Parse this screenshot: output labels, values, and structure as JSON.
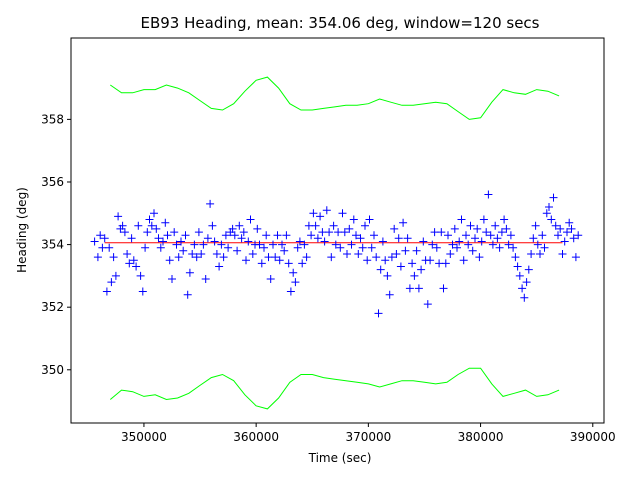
{
  "chart_data": {
    "type": "scatter",
    "title": "EB93 Heading, mean: 354.06 deg, window=120 secs",
    "xlabel": "Time (sec)",
    "ylabel": "Heading (deg)",
    "xlim": [
      343500,
      391000
    ],
    "ylim": [
      348.3,
      360.6
    ],
    "xticks": [
      350000,
      360000,
      370000,
      380000,
      390000
    ],
    "yticks": [
      350,
      352,
      354,
      356,
      358
    ],
    "colors": {
      "points": "#0000ff",
      "mean_line": "#ff0000",
      "band": "#00ff00",
      "axes": "#000000"
    },
    "mean": 354.06,
    "mean_line_x": [
      346500,
      387300
    ],
    "marker": "plus",
    "band_x": [
      347000,
      348000,
      349000,
      350000,
      351000,
      352000,
      353000,
      354000,
      355000,
      356000,
      357000,
      358000,
      359000,
      360000,
      361000,
      362000,
      363000,
      364000,
      365000,
      366000,
      367000,
      368000,
      369000,
      370000,
      371000,
      372000,
      373000,
      374000,
      375000,
      376000,
      377000,
      378000,
      379000,
      380000,
      381000,
      382000,
      383000,
      384000,
      385000,
      386000,
      387000
    ],
    "upper_band": [
      359.1,
      358.85,
      358.85,
      358.95,
      358.95,
      359.1,
      359.0,
      358.85,
      358.6,
      358.35,
      358.3,
      358.5,
      358.9,
      359.25,
      359.35,
      359.0,
      358.5,
      358.3,
      358.3,
      358.35,
      358.4,
      358.45,
      358.45,
      358.5,
      358.65,
      358.55,
      358.45,
      358.45,
      358.5,
      358.55,
      358.5,
      358.25,
      358.0,
      358.05,
      358.55,
      358.95,
      358.85,
      358.8,
      358.95,
      358.9,
      358.75
    ],
    "lower_band": [
      349.05,
      349.35,
      349.3,
      349.15,
      349.2,
      349.05,
      349.1,
      349.25,
      349.5,
      349.75,
      349.85,
      349.65,
      349.2,
      348.85,
      348.75,
      349.1,
      349.6,
      349.85,
      349.85,
      349.75,
      349.7,
      349.65,
      349.6,
      349.55,
      349.45,
      349.55,
      349.65,
      349.65,
      349.6,
      349.55,
      349.6,
      349.85,
      350.05,
      350.05,
      349.55,
      349.15,
      349.25,
      349.35,
      349.15,
      349.2,
      349.35
    ],
    "points": [
      [
        345600,
        354.1
      ],
      [
        345900,
        353.6
      ],
      [
        346100,
        354.3
      ],
      [
        346300,
        353.9
      ],
      [
        346500,
        354.2
      ],
      [
        346700,
        352.5
      ],
      [
        346900,
        353.9
      ],
      [
        347100,
        352.8
      ],
      [
        347300,
        353.6
      ],
      [
        347500,
        353.0
      ],
      [
        347700,
        354.9
      ],
      [
        347900,
        354.5
      ],
      [
        348100,
        354.6
      ],
      [
        348300,
        354.4
      ],
      [
        348500,
        353.7
      ],
      [
        348700,
        353.4
      ],
      [
        348900,
        354.2
      ],
      [
        349100,
        353.5
      ],
      [
        349300,
        353.3
      ],
      [
        349500,
        354.6
      ],
      [
        349700,
        353.0
      ],
      [
        349900,
        352.5
      ],
      [
        350100,
        353.9
      ],
      [
        350300,
        354.4
      ],
      [
        350500,
        354.8
      ],
      [
        350700,
        354.6
      ],
      [
        350900,
        355.0
      ],
      [
        351100,
        354.5
      ],
      [
        351300,
        354.2
      ],
      [
        351500,
        353.9
      ],
      [
        351700,
        354.1
      ],
      [
        351900,
        354.7
      ],
      [
        352100,
        354.3
      ],
      [
        352300,
        353.5
      ],
      [
        352500,
        352.9
      ],
      [
        352700,
        354.4
      ],
      [
        352900,
        354.0
      ],
      [
        353100,
        353.6
      ],
      [
        353300,
        354.1
      ],
      [
        353500,
        353.8
      ],
      [
        353700,
        354.3
      ],
      [
        353900,
        352.4
      ],
      [
        354100,
        353.1
      ],
      [
        354300,
        353.7
      ],
      [
        354500,
        354.0
      ],
      [
        354700,
        353.6
      ],
      [
        354900,
        354.4
      ],
      [
        355100,
        353.7
      ],
      [
        355300,
        354.0
      ],
      [
        355500,
        352.9
      ],
      [
        355700,
        354.2
      ],
      [
        355900,
        355.3
      ],
      [
        356100,
        354.6
      ],
      [
        356300,
        354.1
      ],
      [
        356500,
        353.7
      ],
      [
        356700,
        353.3
      ],
      [
        356900,
        354.0
      ],
      [
        357100,
        353.6
      ],
      [
        357300,
        354.3
      ],
      [
        357500,
        353.9
      ],
      [
        357700,
        354.4
      ],
      [
        357900,
        354.5
      ],
      [
        358100,
        354.3
      ],
      [
        358300,
        353.8
      ],
      [
        358500,
        354.6
      ],
      [
        358700,
        354.2
      ],
      [
        358900,
        354.4
      ],
      [
        359100,
        353.5
      ],
      [
        359300,
        354.1
      ],
      [
        359500,
        354.8
      ],
      [
        359700,
        353.7
      ],
      [
        359900,
        354.0
      ],
      [
        360100,
        354.5
      ],
      [
        360300,
        354.0
      ],
      [
        360500,
        353.4
      ],
      [
        360700,
        353.9
      ],
      [
        360900,
        354.3
      ],
      [
        361100,
        353.6
      ],
      [
        361300,
        352.9
      ],
      [
        361500,
        354.0
      ],
      [
        361700,
        353.6
      ],
      [
        361900,
        354.3
      ],
      [
        362100,
        353.5
      ],
      [
        362300,
        354.0
      ],
      [
        362500,
        353.8
      ],
      [
        362700,
        354.3
      ],
      [
        362900,
        353.4
      ],
      [
        363100,
        352.5
      ],
      [
        363300,
        353.1
      ],
      [
        363500,
        352.8
      ],
      [
        363700,
        353.9
      ],
      [
        363900,
        354.1
      ],
      [
        364100,
        353.4
      ],
      [
        364300,
        354.0
      ],
      [
        364500,
        353.6
      ],
      [
        364700,
        354.6
      ],
      [
        364900,
        354.3
      ],
      [
        365100,
        355.0
      ],
      [
        365300,
        354.6
      ],
      [
        365500,
        354.2
      ],
      [
        365700,
        354.9
      ],
      [
        365900,
        354.4
      ],
      [
        366100,
        354.1
      ],
      [
        366300,
        355.1
      ],
      [
        366500,
        354.4
      ],
      [
        366700,
        353.6
      ],
      [
        366900,
        354.6
      ],
      [
        367100,
        354.0
      ],
      [
        367300,
        354.4
      ],
      [
        367500,
        353.9
      ],
      [
        367700,
        355.0
      ],
      [
        367900,
        354.4
      ],
      [
        368100,
        353.7
      ],
      [
        368300,
        354.5
      ],
      [
        368500,
        354.0
      ],
      [
        368700,
        354.8
      ],
      [
        368900,
        354.3
      ],
      [
        369100,
        353.7
      ],
      [
        369300,
        354.2
      ],
      [
        369500,
        353.9
      ],
      [
        369700,
        354.6
      ],
      [
        369900,
        353.5
      ],
      [
        370100,
        354.8
      ],
      [
        370300,
        353.9
      ],
      [
        370500,
        354.3
      ],
      [
        370700,
        353.6
      ],
      [
        370900,
        351.8
      ],
      [
        371100,
        353.2
      ],
      [
        371300,
        354.1
      ],
      [
        371500,
        353.5
      ],
      [
        371700,
        353.0
      ],
      [
        371900,
        352.4
      ],
      [
        372100,
        353.6
      ],
      [
        372300,
        354.5
      ],
      [
        372500,
        353.7
      ],
      [
        372700,
        354.2
      ],
      [
        372900,
        353.3
      ],
      [
        373100,
        354.7
      ],
      [
        373300,
        353.8
      ],
      [
        373500,
        354.2
      ],
      [
        373700,
        352.6
      ],
      [
        373900,
        353.4
      ],
      [
        374100,
        353.0
      ],
      [
        374300,
        353.8
      ],
      [
        374500,
        352.6
      ],
      [
        374700,
        353.2
      ],
      [
        374900,
        354.1
      ],
      [
        375100,
        353.5
      ],
      [
        375300,
        352.1
      ],
      [
        375500,
        353.5
      ],
      [
        375700,
        354.0
      ],
      [
        375900,
        354.4
      ],
      [
        376100,
        353.9
      ],
      [
        376300,
        353.4
      ],
      [
        376500,
        354.4
      ],
      [
        376700,
        352.6
      ],
      [
        376900,
        353.4
      ],
      [
        377100,
        354.3
      ],
      [
        377300,
        353.7
      ],
      [
        377500,
        354.0
      ],
      [
        377700,
        354.5
      ],
      [
        377900,
        353.9
      ],
      [
        378100,
        354.1
      ],
      [
        378300,
        354.8
      ],
      [
        378500,
        353.5
      ],
      [
        378700,
        354.3
      ],
      [
        378900,
        354.0
      ],
      [
        379100,
        354.6
      ],
      [
        379300,
        353.8
      ],
      [
        379500,
        354.2
      ],
      [
        379700,
        354.5
      ],
      [
        379900,
        353.6
      ],
      [
        380100,
        354.1
      ],
      [
        380300,
        354.8
      ],
      [
        380500,
        354.4
      ],
      [
        380700,
        355.6
      ],
      [
        380900,
        354.3
      ],
      [
        381100,
        354.0
      ],
      [
        381300,
        354.6
      ],
      [
        381500,
        354.2
      ],
      [
        381700,
        353.9
      ],
      [
        381900,
        354.4
      ],
      [
        382100,
        354.8
      ],
      [
        382300,
        354.5
      ],
      [
        382500,
        354.0
      ],
      [
        382700,
        354.3
      ],
      [
        382900,
        353.9
      ],
      [
        383100,
        353.6
      ],
      [
        383300,
        353.3
      ],
      [
        383500,
        353.0
      ],
      [
        383700,
        352.6
      ],
      [
        383900,
        352.3
      ],
      [
        384100,
        352.8
      ],
      [
        384300,
        353.2
      ],
      [
        384500,
        353.7
      ],
      [
        384700,
        354.2
      ],
      [
        384900,
        354.6
      ],
      [
        385100,
        354.0
      ],
      [
        385300,
        353.7
      ],
      [
        385500,
        354.3
      ],
      [
        385700,
        353.9
      ],
      [
        385900,
        355.0
      ],
      [
        386100,
        355.2
      ],
      [
        386300,
        354.8
      ],
      [
        386500,
        355.5
      ],
      [
        386700,
        354.6
      ],
      [
        386900,
        354.3
      ],
      [
        387100,
        354.5
      ],
      [
        387300,
        353.7
      ],
      [
        387500,
        354.1
      ],
      [
        387700,
        354.4
      ],
      [
        387900,
        354.7
      ],
      [
        388100,
        354.5
      ],
      [
        388300,
        354.2
      ],
      [
        388500,
        353.6
      ],
      [
        388700,
        354.3
      ]
    ]
  }
}
